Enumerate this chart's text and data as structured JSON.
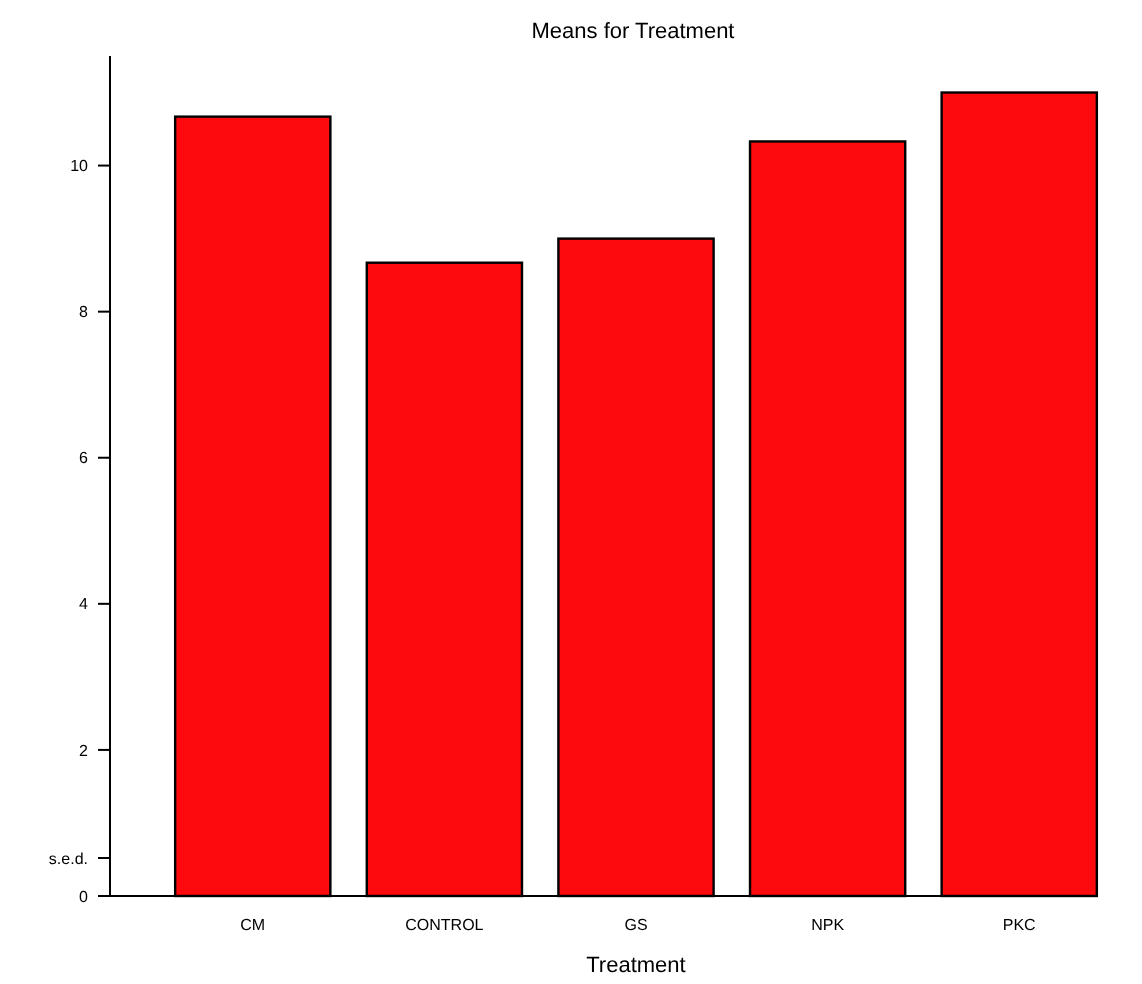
{
  "chart_data": {
    "type": "bar",
    "title": "Means for Treatment",
    "xlabel": "Treatment",
    "categories": [
      "CM",
      "CONTROL",
      "GS",
      "NPK",
      "PKC"
    ],
    "values": [
      10.67,
      8.67,
      9.0,
      10.33,
      11.0
    ],
    "color": "#fc0a0d",
    "ylim": [
      0,
      11.5
    ],
    "yticks": [
      0,
      {
        "value": 0.52,
        "label": "s.e.d."
      },
      2,
      4,
      6,
      8,
      10
    ],
    "grid": false
  }
}
